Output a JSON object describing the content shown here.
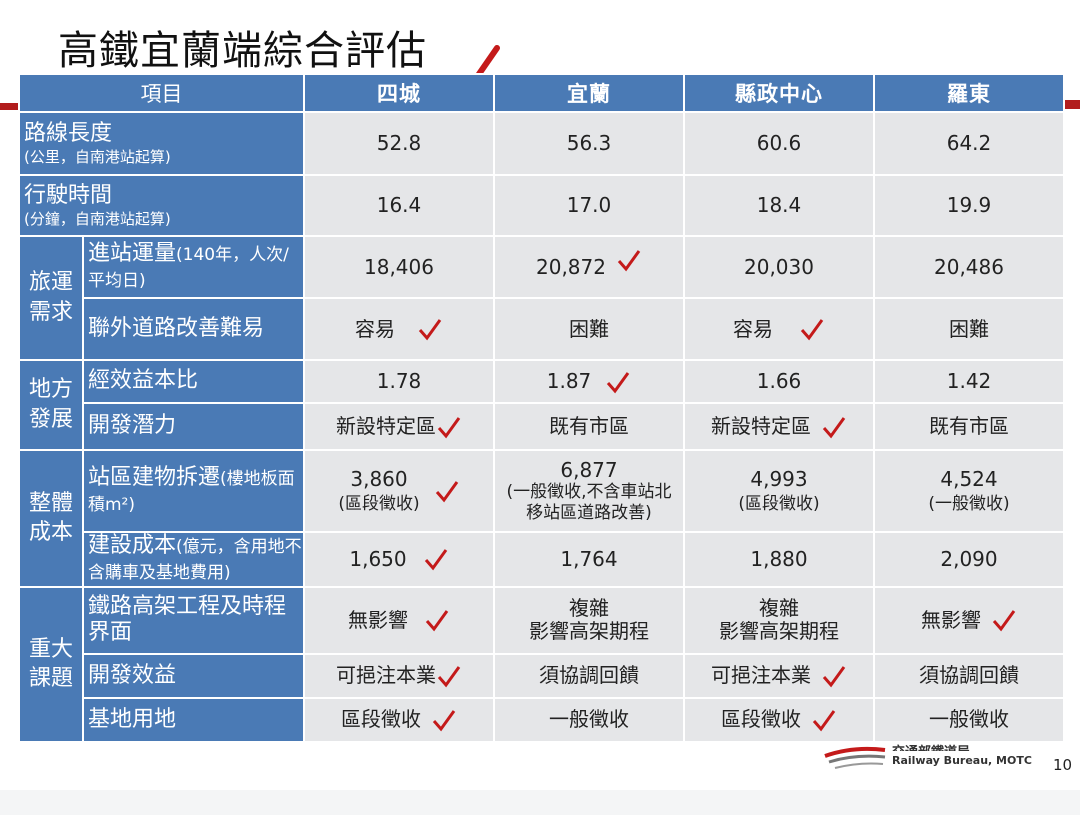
{
  "title": "高鐵宜蘭端綜合評估",
  "header": {
    "item": "項目",
    "columns": [
      "四城",
      "宜蘭",
      "縣政中心",
      "羅東"
    ]
  },
  "rows": {
    "length": {
      "label": "路線長度",
      "sub": "(公里，自南港站起算)",
      "values": [
        "52.8",
        "56.3",
        "60.6",
        "64.2"
      ]
    },
    "time": {
      "label": "行駛時間",
      "sub": "(分鐘，自南港站起算)",
      "values": [
        "16.4",
        "17.0",
        "18.4",
        "19.9"
      ]
    },
    "ridership": {
      "label": "進站運量",
      "sub": "(140年，人次/平均日)",
      "values": [
        "18,406",
        "20,872",
        "20,030",
        "20,486"
      ]
    },
    "road": {
      "label": "聯外道路改善難易",
      "values": [
        "容易",
        "困難",
        "容易",
        "困難"
      ]
    },
    "bcr": {
      "label": "經效益本比",
      "values": [
        "1.78",
        "1.87",
        "1.66",
        "1.42"
      ]
    },
    "potential": {
      "label": "開發潛力",
      "values": [
        "新設特定區",
        "既有市區",
        "新設特定區",
        "既有市區"
      ]
    },
    "demolition": {
      "label": "站區建物拆遷",
      "sub": "(樓地板面積m²)",
      "values": [
        "3,860",
        "6,877",
        "4,993",
        "4,524"
      ],
      "notes": [
        "(區段徵收)",
        "(一般徵收,不含車站北移站區道路改善)",
        "(區段徵收)",
        "(一般徵收)"
      ]
    },
    "cost": {
      "label": "建設成本",
      "sub": "(億元，含用地不含購車及基地費用)",
      "values": [
        "1,650",
        "1,764",
        "1,880",
        "2,090"
      ]
    },
    "viaduct": {
      "label": "鐵路高架工程及時程界面",
      "values": [
        "無影響",
        "複雜",
        "複雜",
        "無影響"
      ],
      "notes": [
        "",
        "影響高架期程",
        "影響高架期程",
        ""
      ]
    },
    "benefit": {
      "label": "開發效益",
      "values": [
        "可挹注本業",
        "須協調回饋",
        "可挹注本業",
        "須協調回饋"
      ]
    },
    "depot": {
      "label": "基地用地",
      "values": [
        "區段徵收",
        "一般徵收",
        "區段徵收",
        "一般徵收"
      ]
    }
  },
  "groups": {
    "travel": "旅運需求",
    "local": "地方發展",
    "overall_cost": "整體成本",
    "major": "重大課題"
  },
  "logo": {
    "chinese": "交通部鐵道局",
    "english": "Railway Bureau, MOTC"
  },
  "page_number": "10",
  "colors": {
    "header_blue": "#4a7ab5",
    "cell_gray": "#e5e6e8",
    "check_red": "#c41a1a"
  },
  "check_icon": "check-mark-icon"
}
